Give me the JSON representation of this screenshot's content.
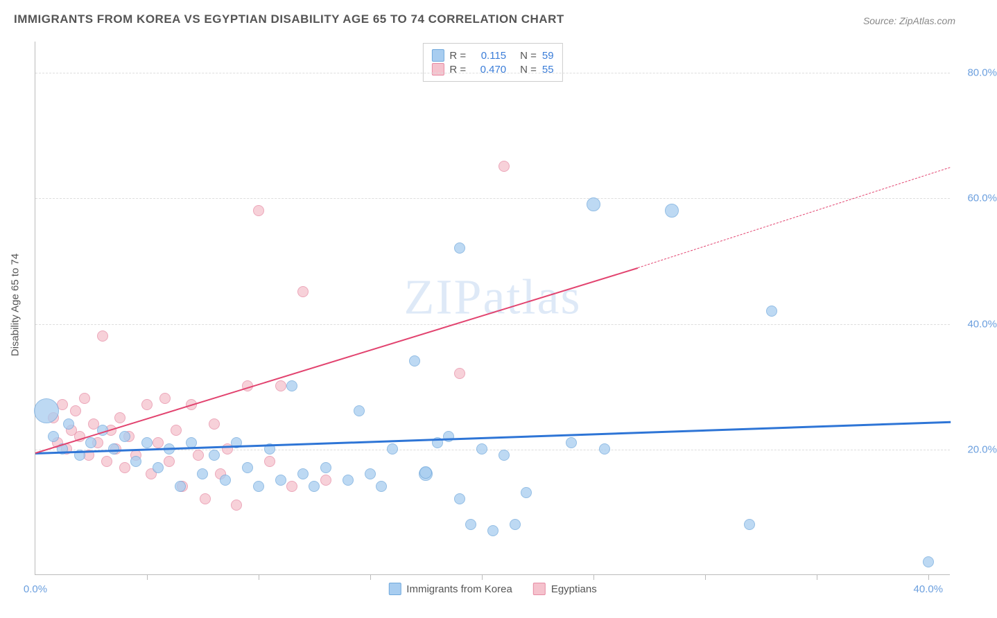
{
  "title": "IMMIGRANTS FROM KOREA VS EGYPTIAN DISABILITY AGE 65 TO 74 CORRELATION CHART",
  "source": "Source: ZipAtlas.com",
  "watermark": "ZIPatlas",
  "ylabel": "Disability Age 65 to 74",
  "chart": {
    "type": "scatter",
    "background_color": "#ffffff",
    "grid_color": "#dddddd",
    "axis_color": "#bbbbbb",
    "xlim": [
      0,
      41
    ],
    "ylim": [
      0,
      85
    ],
    "yticks": [
      20,
      40,
      60,
      80
    ],
    "ytick_labels": [
      "20.0%",
      "40.0%",
      "60.0%",
      "80.0%"
    ],
    "xticks_minor": [
      5,
      10,
      15,
      20,
      25,
      30,
      35,
      40
    ],
    "xtick_labels": [
      {
        "pos": 0,
        "text": "0.0%"
      },
      {
        "pos": 40,
        "text": "40.0%"
      }
    ],
    "series": [
      {
        "name": "Immigrants from Korea",
        "color_fill": "#a8cdf0",
        "color_stroke": "#6fa8dc",
        "r_value": "0.115",
        "n_value": "59",
        "trend": {
          "y_start": 19.5,
          "y_end": 24.5,
          "color": "#2e75d6",
          "width": 3,
          "dashed": false
        },
        "points": [
          {
            "x": 0.5,
            "y": 26,
            "r": 18
          },
          {
            "x": 0.8,
            "y": 22,
            "r": 8
          },
          {
            "x": 1.2,
            "y": 20,
            "r": 8
          },
          {
            "x": 1.5,
            "y": 24,
            "r": 8
          },
          {
            "x": 2,
            "y": 19,
            "r": 8
          },
          {
            "x": 2.5,
            "y": 21,
            "r": 8
          },
          {
            "x": 3,
            "y": 23,
            "r": 8
          },
          {
            "x": 3.5,
            "y": 20,
            "r": 8
          },
          {
            "x": 4,
            "y": 22,
            "r": 8
          },
          {
            "x": 4.5,
            "y": 18,
            "r": 8
          },
          {
            "x": 5,
            "y": 21,
            "r": 8
          },
          {
            "x": 5.5,
            "y": 17,
            "r": 8
          },
          {
            "x": 6,
            "y": 20,
            "r": 8
          },
          {
            "x": 6.5,
            "y": 14,
            "r": 8
          },
          {
            "x": 7,
            "y": 21,
            "r": 8
          },
          {
            "x": 7.5,
            "y": 16,
            "r": 8
          },
          {
            "x": 8,
            "y": 19,
            "r": 8
          },
          {
            "x": 8.5,
            "y": 15,
            "r": 8
          },
          {
            "x": 9,
            "y": 21,
            "r": 8
          },
          {
            "x": 9.5,
            "y": 17,
            "r": 8
          },
          {
            "x": 10,
            "y": 14,
            "r": 8
          },
          {
            "x": 10.5,
            "y": 20,
            "r": 8
          },
          {
            "x": 11,
            "y": 15,
            "r": 8
          },
          {
            "x": 11.5,
            "y": 30,
            "r": 8
          },
          {
            "x": 12,
            "y": 16,
            "r": 8
          },
          {
            "x": 12.5,
            "y": 14,
            "r": 8
          },
          {
            "x": 13,
            "y": 17,
            "r": 8
          },
          {
            "x": 14,
            "y": 15,
            "r": 8
          },
          {
            "x": 14.5,
            "y": 26,
            "r": 8
          },
          {
            "x": 15,
            "y": 16,
            "r": 8
          },
          {
            "x": 15.5,
            "y": 14,
            "r": 8
          },
          {
            "x": 16,
            "y": 20,
            "r": 8
          },
          {
            "x": 17,
            "y": 34,
            "r": 8
          },
          {
            "x": 17.5,
            "y": 16,
            "r": 10
          },
          {
            "x": 17.5,
            "y": 16.2,
            "r": 9
          },
          {
            "x": 18,
            "y": 21,
            "r": 8
          },
          {
            "x": 18.5,
            "y": 22,
            "r": 8
          },
          {
            "x": 19,
            "y": 12,
            "r": 8
          },
          {
            "x": 19,
            "y": 52,
            "r": 8
          },
          {
            "x": 19.5,
            "y": 8,
            "r": 8
          },
          {
            "x": 20,
            "y": 20,
            "r": 8
          },
          {
            "x": 20.5,
            "y": 7,
            "r": 8
          },
          {
            "x": 21,
            "y": 19,
            "r": 8
          },
          {
            "x": 21.5,
            "y": 8,
            "r": 8
          },
          {
            "x": 22,
            "y": 13,
            "r": 8
          },
          {
            "x": 24,
            "y": 21,
            "r": 8
          },
          {
            "x": 25,
            "y": 59,
            "r": 10
          },
          {
            "x": 25.5,
            "y": 20,
            "r": 8
          },
          {
            "x": 28.5,
            "y": 58,
            "r": 10
          },
          {
            "x": 32,
            "y": 8,
            "r": 8
          },
          {
            "x": 33,
            "y": 42,
            "r": 8
          },
          {
            "x": 40,
            "y": 2,
            "r": 8
          }
        ]
      },
      {
        "name": "Egyptians",
        "color_fill": "#f5c2cd",
        "color_stroke": "#e68aa3",
        "r_value": "0.470",
        "n_value": "55",
        "trend_solid": {
          "y_start": 19.5,
          "x_end": 27,
          "y_end": 49,
          "color": "#e2436f",
          "width": 2
        },
        "trend_dashed": {
          "x_start": 27,
          "y_start": 49,
          "y_end": 65,
          "color": "#e2436f",
          "width": 1.5
        },
        "points": [
          {
            "x": 0.8,
            "y": 25,
            "r": 8
          },
          {
            "x": 1,
            "y": 21,
            "r": 8
          },
          {
            "x": 1.2,
            "y": 27,
            "r": 8
          },
          {
            "x": 1.4,
            "y": 20,
            "r": 8
          },
          {
            "x": 1.6,
            "y": 23,
            "r": 8
          },
          {
            "x": 1.8,
            "y": 26,
            "r": 8
          },
          {
            "x": 2,
            "y": 22,
            "r": 8
          },
          {
            "x": 2.2,
            "y": 28,
            "r": 8
          },
          {
            "x": 2.4,
            "y": 19,
            "r": 8
          },
          {
            "x": 2.6,
            "y": 24,
            "r": 8
          },
          {
            "x": 2.8,
            "y": 21,
            "r": 8
          },
          {
            "x": 3,
            "y": 38,
            "r": 8
          },
          {
            "x": 3.2,
            "y": 18,
            "r": 8
          },
          {
            "x": 3.4,
            "y": 23,
            "r": 8
          },
          {
            "x": 3.6,
            "y": 20,
            "r": 8
          },
          {
            "x": 3.8,
            "y": 25,
            "r": 8
          },
          {
            "x": 4,
            "y": 17,
            "r": 8
          },
          {
            "x": 4.2,
            "y": 22,
            "r": 8
          },
          {
            "x": 4.5,
            "y": 19,
            "r": 8
          },
          {
            "x": 5,
            "y": 27,
            "r": 8
          },
          {
            "x": 5.2,
            "y": 16,
            "r": 8
          },
          {
            "x": 5.5,
            "y": 21,
            "r": 8
          },
          {
            "x": 5.8,
            "y": 28,
            "r": 8
          },
          {
            "x": 6,
            "y": 18,
            "r": 8
          },
          {
            "x": 6.3,
            "y": 23,
            "r": 8
          },
          {
            "x": 6.6,
            "y": 14,
            "r": 8
          },
          {
            "x": 7,
            "y": 27,
            "r": 8
          },
          {
            "x": 7.3,
            "y": 19,
            "r": 8
          },
          {
            "x": 7.6,
            "y": 12,
            "r": 8
          },
          {
            "x": 8,
            "y": 24,
            "r": 8
          },
          {
            "x": 8.3,
            "y": 16,
            "r": 8
          },
          {
            "x": 8.6,
            "y": 20,
            "r": 8
          },
          {
            "x": 9,
            "y": 11,
            "r": 8
          },
          {
            "x": 9.5,
            "y": 30,
            "r": 8
          },
          {
            "x": 10,
            "y": 58,
            "r": 8
          },
          {
            "x": 10.5,
            "y": 18,
            "r": 8
          },
          {
            "x": 11,
            "y": 30,
            "r": 8
          },
          {
            "x": 11.5,
            "y": 14,
            "r": 8
          },
          {
            "x": 12,
            "y": 45,
            "r": 8
          },
          {
            "x": 13,
            "y": 15,
            "r": 8
          },
          {
            "x": 19,
            "y": 32,
            "r": 8
          },
          {
            "x": 21,
            "y": 65,
            "r": 8
          }
        ]
      }
    ],
    "legend_bottom": [
      {
        "label": "Immigrants from Korea",
        "fill": "#a8cdf0",
        "stroke": "#6fa8dc"
      },
      {
        "label": "Egyptians",
        "fill": "#f5c2cd",
        "stroke": "#e68aa3"
      }
    ]
  }
}
